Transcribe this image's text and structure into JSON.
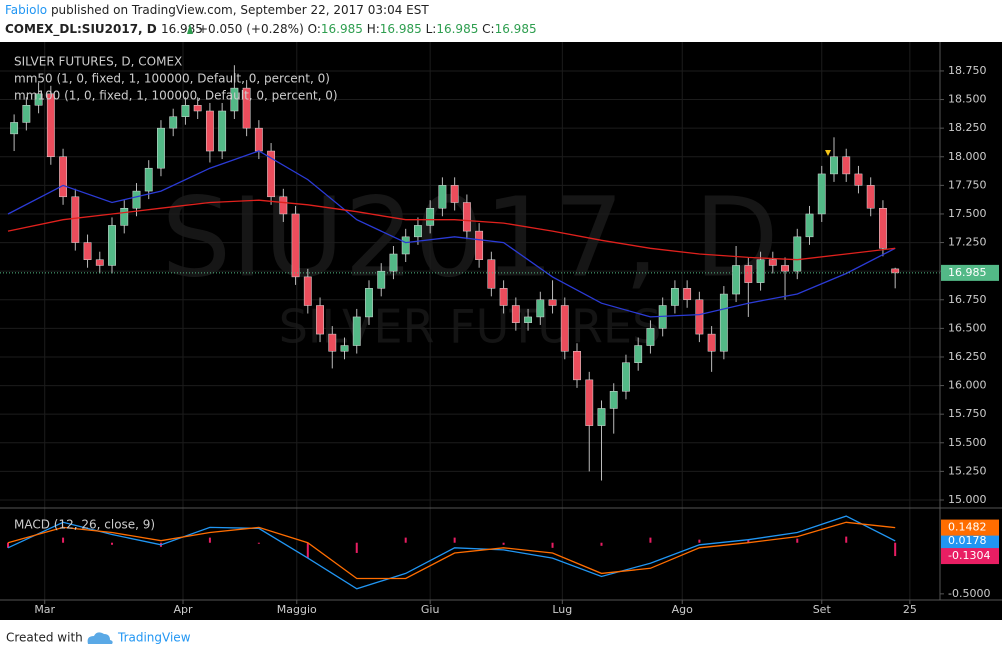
{
  "header": {
    "author": "Fabiolo",
    "published": " published on TradingView.com, September 22, 2017 03:04 EST",
    "symbol": "COMEX_DL:SIU2017, D",
    "price": "16.985",
    "change": "+0.050 (+0.28%)",
    "o_label": "O:",
    "o": "16.985",
    "h_label": "H:",
    "h": "16.985",
    "l_label": "L:",
    "l": "16.985",
    "c_label": "C:",
    "c": "16.985"
  },
  "footer": {
    "created": "Created with",
    "brand": "TradingView"
  },
  "chart_data": {
    "type": "candlestick",
    "title": "SILVER FUTURES, D, COMEX",
    "watermark": "SIU2017, D",
    "watermark_sub": "SILVER FUTURES",
    "up_color": "#53b987",
    "down_color": "#eb4d5c",
    "xlim": [
      -0.5,
      75.5
    ],
    "xticks": [
      {
        "value": 2.5,
        "label": "Mar"
      },
      {
        "value": 13.8,
        "label": "Apr"
      },
      {
        "value": 23.1,
        "label": "Maggio"
      },
      {
        "value": 34,
        "label": "Giu"
      },
      {
        "value": 44.8,
        "label": "Lug"
      },
      {
        "value": 54.6,
        "label": "Ago"
      },
      {
        "value": 66,
        "label": "Set"
      },
      {
        "value": 73.2,
        "label": "25"
      }
    ],
    "ylim": [
      14.93,
      19.003
    ],
    "yticks": [
      {
        "value": 15,
        "label": "15.000"
      },
      {
        "value": 15.25,
        "label": "15.250"
      },
      {
        "value": 15.5,
        "label": "15.500"
      },
      {
        "value": 15.75,
        "label": "15.750"
      },
      {
        "value": 16,
        "label": "16.000"
      },
      {
        "value": 16.25,
        "label": "16.250"
      },
      {
        "value": 16.5,
        "label": "16.500"
      },
      {
        "value": 16.75,
        "label": "16.750"
      },
      {
        "value": 17,
        "label": "17.000"
      },
      {
        "value": 17.25,
        "label": "17.250"
      },
      {
        "value": 17.5,
        "label": "17.500"
      },
      {
        "value": 17.75,
        "label": "17.750"
      },
      {
        "value": 18,
        "label": "18.000"
      },
      {
        "value": 18.25,
        "label": "18.250"
      },
      {
        "value": 18.5,
        "label": "18.500"
      },
      {
        "value": 18.75,
        "label": "18.750"
      }
    ],
    "grid": true,
    "last_price": 16.985,
    "last_color": "#53b987",
    "candles": [
      [
        18.2,
        18.37,
        18.05,
        18.3
      ],
      [
        18.3,
        18.52,
        18.23,
        18.45
      ],
      [
        18.45,
        18.65,
        18.38,
        18.55
      ],
      [
        18.55,
        18.62,
        17.93,
        18.0
      ],
      [
        18.0,
        18.07,
        17.58,
        17.65
      ],
      [
        17.65,
        17.72,
        17.18,
        17.25
      ],
      [
        17.25,
        17.32,
        17.03,
        17.1
      ],
      [
        17.1,
        17.17,
        16.98,
        17.05
      ],
      [
        17.05,
        17.47,
        16.98,
        17.4
      ],
      [
        17.4,
        17.62,
        17.33,
        17.55
      ],
      [
        17.55,
        17.77,
        17.48,
        17.7
      ],
      [
        17.7,
        17.97,
        17.63,
        17.9
      ],
      [
        17.9,
        18.32,
        17.83,
        18.25
      ],
      [
        18.25,
        18.42,
        18.18,
        18.35
      ],
      [
        18.35,
        18.52,
        18.28,
        18.45
      ],
      [
        18.45,
        18.52,
        18.33,
        18.4
      ],
      [
        18.4,
        18.47,
        17.95,
        18.05
      ],
      [
        18.05,
        18.47,
        17.98,
        18.4
      ],
      [
        18.4,
        18.8,
        18.33,
        18.6
      ],
      [
        18.6,
        18.67,
        18.18,
        18.25
      ],
      [
        18.25,
        18.32,
        17.98,
        18.05
      ],
      [
        18.05,
        18.12,
        17.58,
        17.65
      ],
      [
        17.65,
        17.72,
        17.43,
        17.5
      ],
      [
        17.5,
        17.57,
        16.88,
        16.95
      ],
      [
        16.95,
        17.02,
        16.63,
        16.7
      ],
      [
        16.7,
        16.77,
        16.38,
        16.45
      ],
      [
        16.45,
        16.52,
        16.15,
        16.3
      ],
      [
        16.3,
        16.42,
        16.23,
        16.35
      ],
      [
        16.35,
        16.67,
        16.28,
        16.6
      ],
      [
        16.6,
        16.92,
        16.53,
        16.85
      ],
      [
        16.85,
        17.07,
        16.78,
        17.0
      ],
      [
        17.0,
        17.22,
        16.93,
        17.15
      ],
      [
        17.15,
        17.37,
        17.08,
        17.3
      ],
      [
        17.3,
        17.47,
        17.23,
        17.4
      ],
      [
        17.4,
        17.62,
        17.33,
        17.55
      ],
      [
        17.55,
        17.82,
        17.48,
        17.75
      ],
      [
        17.75,
        17.82,
        17.53,
        17.6
      ],
      [
        17.6,
        17.67,
        17.28,
        17.35
      ],
      [
        17.35,
        17.42,
        17.03,
        17.1
      ],
      [
        17.1,
        17.17,
        16.78,
        16.85
      ],
      [
        16.85,
        16.92,
        16.63,
        16.7
      ],
      [
        16.7,
        16.77,
        16.48,
        16.55
      ],
      [
        16.55,
        16.67,
        16.48,
        16.6
      ],
      [
        16.6,
        16.82,
        16.53,
        16.75
      ],
      [
        16.75,
        16.92,
        16.63,
        16.7
      ],
      [
        16.7,
        16.77,
        16.23,
        16.3
      ],
      [
        16.3,
        16.37,
        15.98,
        16.05
      ],
      [
        16.05,
        16.12,
        15.25,
        15.65
      ],
      [
        15.65,
        15.87,
        15.17,
        15.8
      ],
      [
        15.8,
        16.02,
        15.58,
        15.95
      ],
      [
        15.95,
        16.27,
        15.88,
        16.2
      ],
      [
        16.2,
        16.42,
        16.13,
        16.35
      ],
      [
        16.35,
        16.57,
        16.28,
        16.5
      ],
      [
        16.5,
        16.77,
        16.43,
        16.7
      ],
      [
        16.7,
        16.92,
        16.63,
        16.85
      ],
      [
        16.85,
        16.92,
        16.68,
        16.75
      ],
      [
        16.75,
        16.82,
        16.38,
        16.45
      ],
      [
        16.45,
        16.52,
        16.12,
        16.3
      ],
      [
        16.3,
        16.87,
        16.23,
        16.8
      ],
      [
        16.8,
        17.22,
        16.73,
        17.05
      ],
      [
        17.05,
        17.12,
        16.6,
        16.9
      ],
      [
        16.9,
        17.17,
        16.83,
        17.1
      ],
      [
        17.1,
        17.17,
        16.98,
        17.05
      ],
      [
        17.05,
        17.12,
        16.75,
        17.0
      ],
      [
        17.0,
        17.37,
        16.93,
        17.3
      ],
      [
        17.3,
        17.57,
        17.23,
        17.5
      ],
      [
        17.5,
        17.92,
        17.43,
        17.85
      ],
      [
        17.85,
        18.17,
        17.78,
        18.0
      ],
      [
        18.0,
        18.07,
        17.78,
        17.85
      ],
      [
        17.85,
        17.92,
        17.68,
        17.75
      ],
      [
        17.75,
        17.82,
        17.48,
        17.55
      ],
      [
        17.55,
        17.62,
        17.13,
        17.2
      ],
      [
        17.02,
        17.03,
        16.85,
        16.985
      ]
    ],
    "series": [
      {
        "name": "mm50 (1, 0, fixed, 1, 100000, Default, 0, percent, 0)",
        "color": "#2b3bd6",
        "x": [
          -0.5,
          4,
          8,
          12,
          16,
          20,
          24,
          28,
          32,
          36,
          40,
          44,
          48,
          52,
          56,
          60,
          64,
          68,
          72
        ],
        "values": [
          17.5,
          17.75,
          17.6,
          17.7,
          17.9,
          18.05,
          17.8,
          17.45,
          17.25,
          17.3,
          17.25,
          16.95,
          16.72,
          16.6,
          16.62,
          16.72,
          16.8,
          16.98,
          17.2
        ]
      },
      {
        "name": "mm100 (1, 0, fixed, 1, 100000, Default, 0, percent, 0)",
        "color": "#e0211d",
        "x": [
          -0.5,
          4,
          8,
          12,
          16,
          20,
          24,
          28,
          32,
          36,
          40,
          44,
          48,
          52,
          56,
          60,
          64,
          68,
          72
        ],
        "values": [
          17.35,
          17.45,
          17.5,
          17.55,
          17.6,
          17.62,
          17.58,
          17.52,
          17.45,
          17.45,
          17.42,
          17.35,
          17.27,
          17.2,
          17.15,
          17.12,
          17.1,
          17.15,
          17.2
        ]
      }
    ],
    "macd": {
      "title": "MACD (12, 26, close, 9)",
      "ylim": [
        -0.56,
        0.32
      ],
      "yticks": [
        {
          "value": -0.5,
          "label": "-0.5000"
        }
      ],
      "x": [
        -0.5,
        4,
        8,
        12,
        16,
        20,
        24,
        28,
        32,
        36,
        40,
        44,
        48,
        52,
        56,
        60,
        64,
        68,
        72
      ],
      "series": [
        {
          "name": "MACD",
          "color": "#2196f3",
          "values": [
            -0.05,
            0.2,
            0.08,
            -0.02,
            0.15,
            0.14,
            -0.15,
            -0.45,
            -0.3,
            -0.05,
            -0.07,
            -0.15,
            -0.33,
            -0.2,
            -0.02,
            0.03,
            0.1,
            0.26,
            0.0178
          ]
        },
        {
          "name": "Signal",
          "color": "#ff6d00",
          "values": [
            0.0,
            0.15,
            0.1,
            0.02,
            0.1,
            0.15,
            0.0,
            -0.35,
            -0.35,
            -0.1,
            -0.05,
            -0.1,
            -0.3,
            -0.25,
            -0.05,
            0.0,
            0.06,
            0.2,
            0.1482
          ]
        },
        {
          "name": "Histogram",
          "color": "#e91e63",
          "values": [
            -0.05,
            0.05,
            -0.02,
            -0.04,
            0.05,
            -0.01,
            -0.15,
            -0.1,
            0.05,
            0.05,
            -0.02,
            -0.05,
            -0.03,
            0.05,
            0.03,
            0.03,
            0.04,
            0.06,
            -0.1304
          ]
        }
      ]
    }
  }
}
